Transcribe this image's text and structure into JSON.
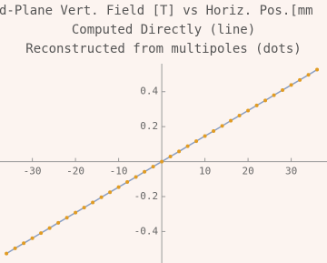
{
  "chart_data": {
    "type": "line",
    "title": "d-Plane Vert. Field [T] vs Horiz. Pos.[mm",
    "subtitles": [
      "Computed Directly (line)",
      "Reconstructed from multipoles (dots)"
    ],
    "x": [
      -36,
      -34,
      -32,
      -30,
      -28,
      -26,
      -24,
      -22,
      -20,
      -18,
      -16,
      -14,
      -12,
      -10,
      -8,
      -6,
      -4,
      -2,
      0,
      2,
      4,
      6,
      8,
      10,
      12,
      14,
      16,
      18,
      20,
      22,
      24,
      26,
      28,
      30,
      32,
      34,
      36
    ],
    "series": [
      {
        "style": "line",
        "color": "#8a9fc4",
        "values": [
          -0.526,
          -0.496,
          -0.467,
          -0.438,
          -0.409,
          -0.38,
          -0.35,
          -0.321,
          -0.292,
          -0.263,
          -0.234,
          -0.204,
          -0.175,
          -0.146,
          -0.117,
          -0.088,
          -0.058,
          -0.029,
          0,
          0.029,
          0.058,
          0.088,
          0.117,
          0.146,
          0.175,
          0.204,
          0.234,
          0.263,
          0.292,
          0.321,
          0.35,
          0.38,
          0.409,
          0.438,
          0.467,
          0.496,
          0.526
        ]
      },
      {
        "style": "dots",
        "color": "#e19c24",
        "values": [
          -0.526,
          -0.496,
          -0.467,
          -0.438,
          -0.409,
          -0.38,
          -0.35,
          -0.321,
          -0.292,
          -0.263,
          -0.234,
          -0.204,
          -0.175,
          -0.146,
          -0.117,
          -0.088,
          -0.058,
          -0.029,
          0,
          0.029,
          0.058,
          0.088,
          0.117,
          0.146,
          0.175,
          0.204,
          0.234,
          0.263,
          0.292,
          0.321,
          0.35,
          0.38,
          0.409,
          0.438,
          0.467,
          0.496,
          0.526
        ]
      }
    ],
    "xlim": [
      -37.5,
      38.3
    ],
    "ylim": [
      -0.58,
      0.56
    ],
    "xticks": [
      -30,
      -20,
      -10,
      10,
      20,
      30
    ],
    "yticks": [
      -0.4,
      -0.2,
      0.2,
      0.4
    ]
  }
}
